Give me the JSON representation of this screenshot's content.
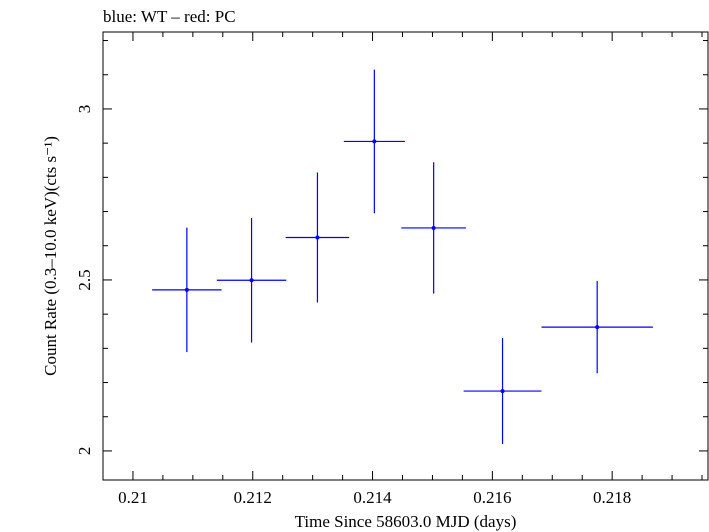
{
  "chart_data": {
    "type": "scatter",
    "title": "blue: WT – red: PC",
    "xlabel": "Time Since 58603.0 MJD (days)",
    "ylabel": "Count Rate (0.3–10.0 keV)(cts s⁻¹)",
    "xlim": [
      0.2095,
      0.2196
    ],
    "ylim": [
      1.915,
      3.225
    ],
    "x_ticks": [
      0.21,
      0.212,
      0.214,
      0.216,
      0.218
    ],
    "x_tick_labels": [
      "0.21",
      "0.212",
      "0.214",
      "0.216",
      "0.218"
    ],
    "y_ticks": [
      2,
      2.5,
      3
    ],
    "y_tick_labels": [
      "2",
      "2.5",
      "3"
    ],
    "grid": false,
    "series": [
      {
        "name": "WT",
        "color": "#0000ff",
        "points": [
          {
            "x": 0.2109,
            "y": 2.471,
            "xerr": 0.00058,
            "yerr": 0.182
          },
          {
            "x": 0.21198,
            "y": 2.499,
            "xerr": 0.00058,
            "yerr": 0.182
          },
          {
            "x": 0.21308,
            "y": 2.624,
            "xerr": 0.00053,
            "yerr": 0.19
          },
          {
            "x": 0.21403,
            "y": 2.905,
            "xerr": 0.00051,
            "yerr": 0.21
          },
          {
            "x": 0.21502,
            "y": 2.652,
            "xerr": 0.00054,
            "yerr": 0.192
          },
          {
            "x": 0.21617,
            "y": 2.175,
            "xerr": 0.00065,
            "yerr": 0.155
          },
          {
            "x": 0.21775,
            "y": 2.362,
            "xerr": 0.00093,
            "yerr": 0.135
          }
        ]
      }
    ]
  }
}
